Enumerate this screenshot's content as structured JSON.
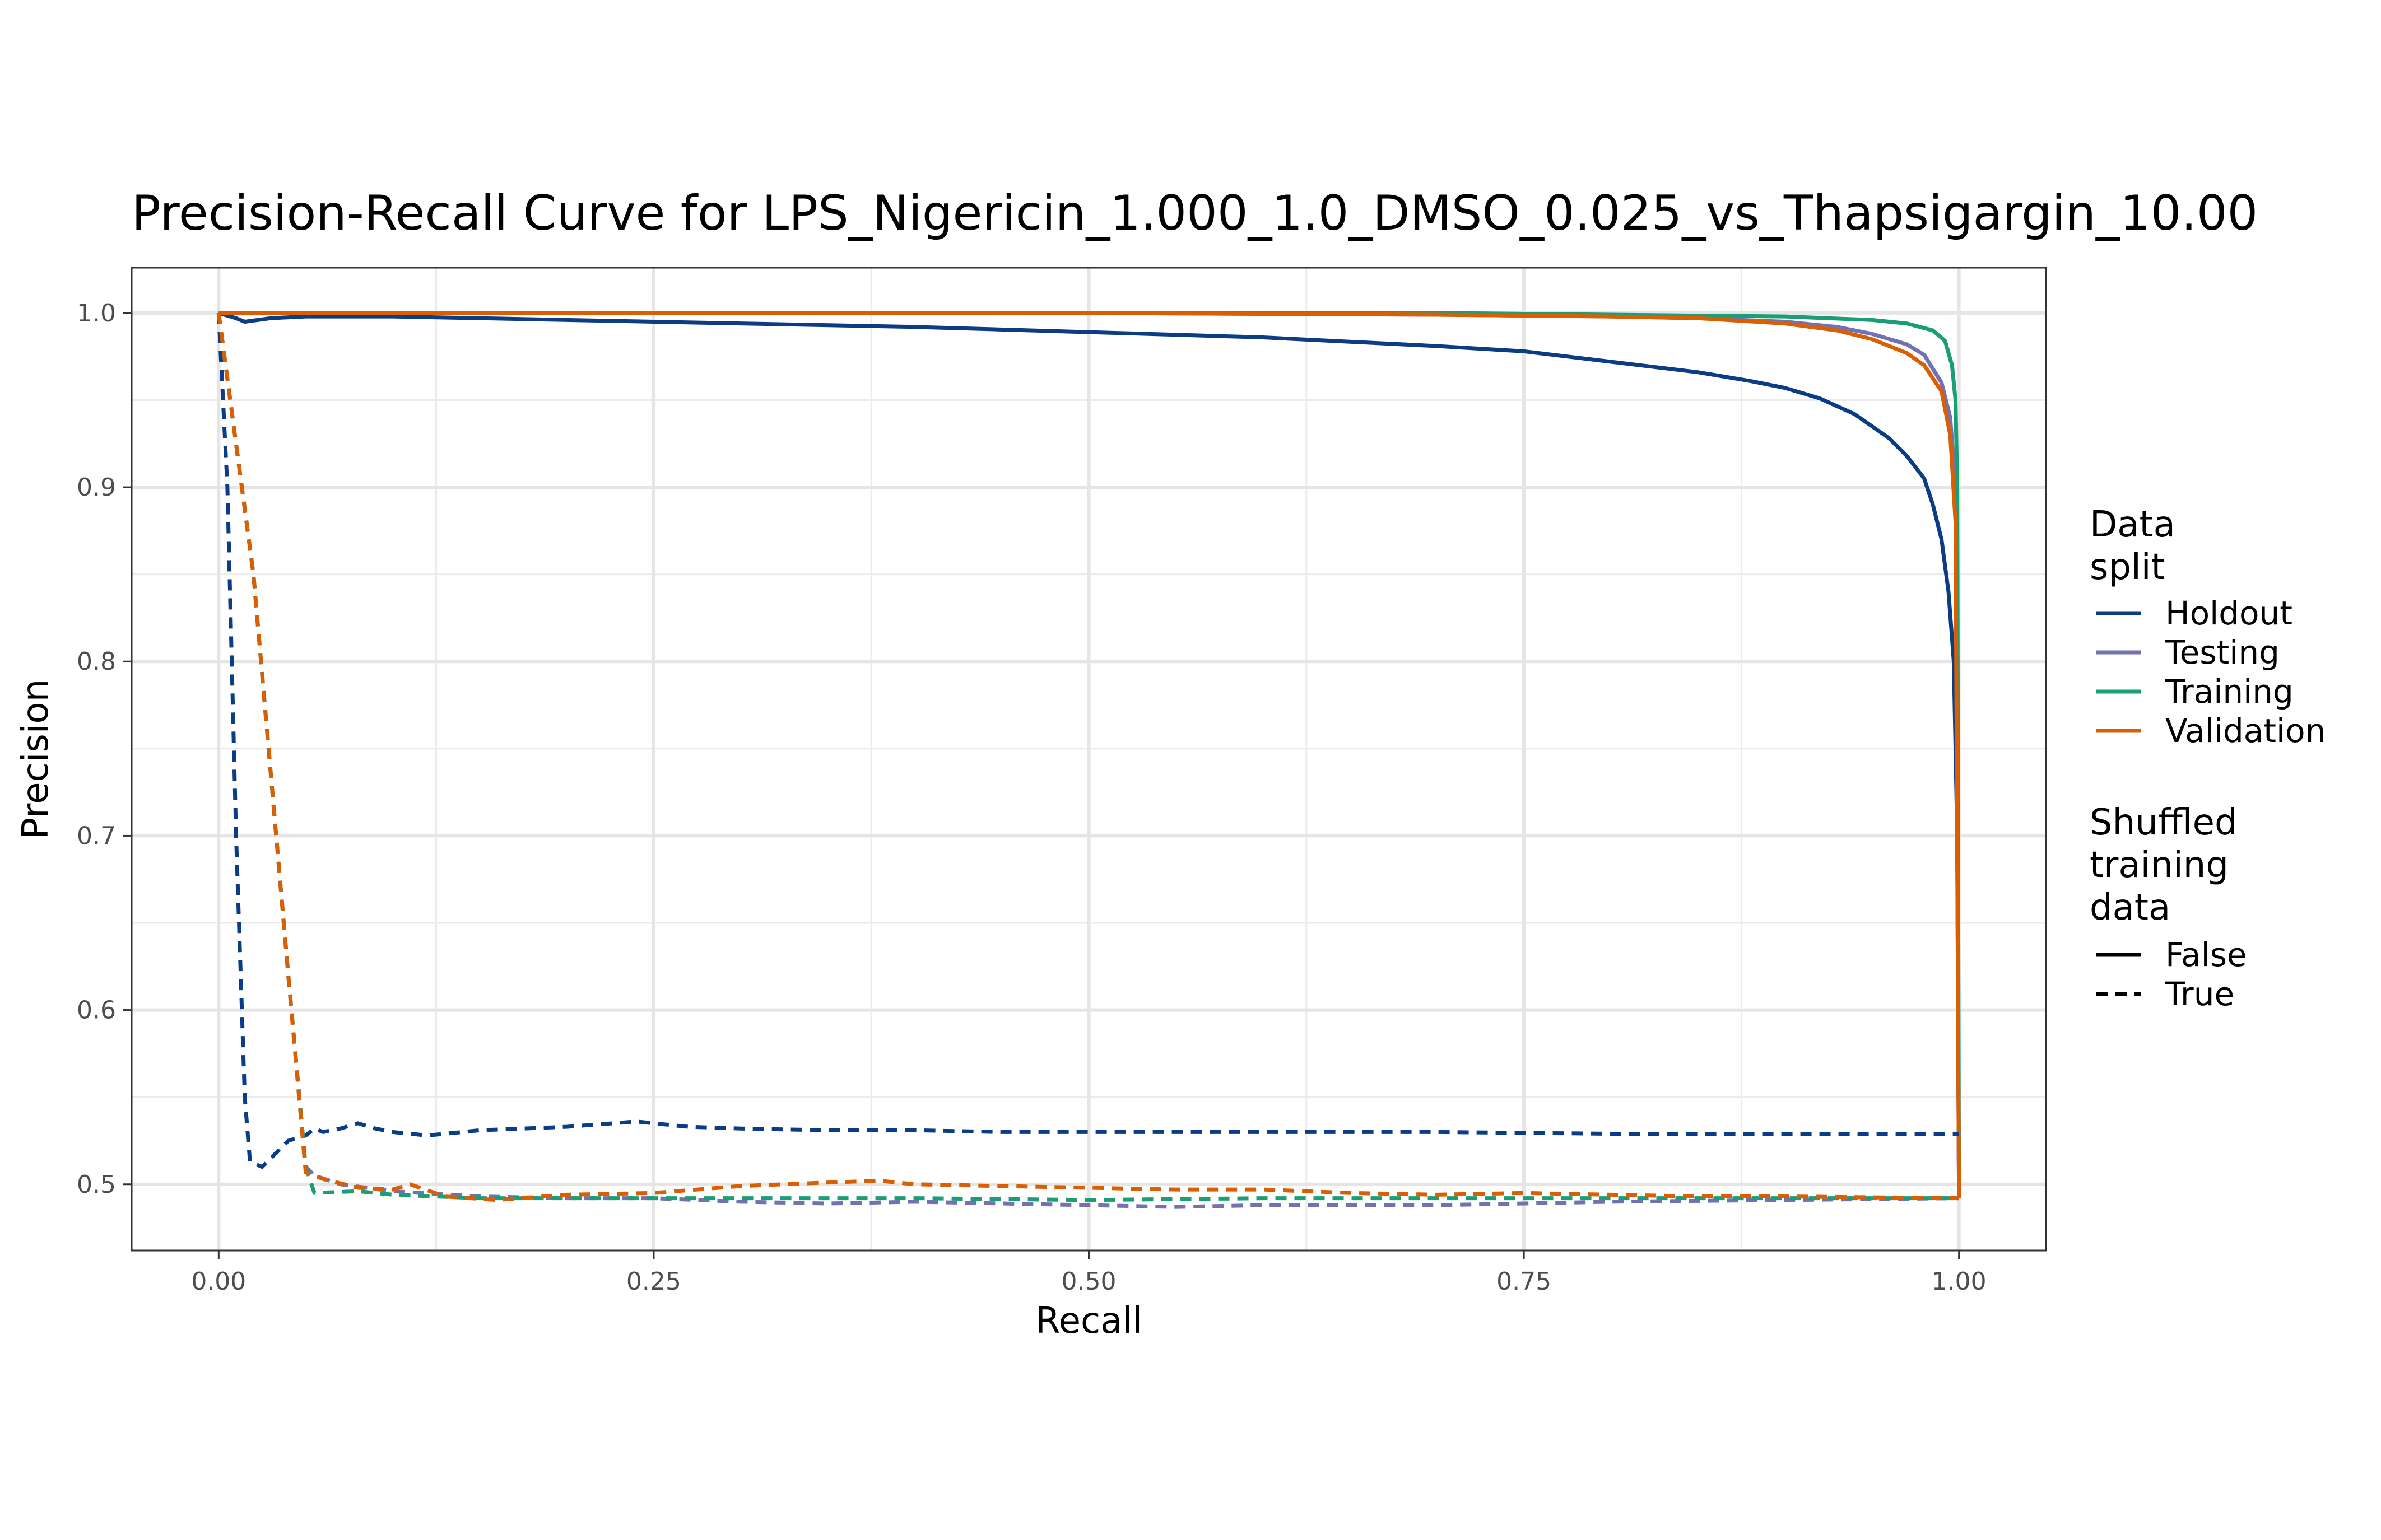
{
  "chart_data": {
    "type": "line",
    "title": "Precision-Recall Curve for LPS_Nigericin_1.000_1.0_DMSO_0.025_vs_Thapsigargin_10.00",
    "xlabel": "Recall",
    "ylabel": "Precision",
    "xlim": [
      -0.05,
      1.05
    ],
    "ylim": [
      0.462,
      1.026
    ],
    "x_ticks": [
      "0.00",
      "0.25",
      "0.50",
      "0.75",
      "1.00"
    ],
    "x_tick_values": [
      0,
      0.25,
      0.5,
      0.75,
      1.0
    ],
    "y_ticks": [
      "0.5",
      "0.6",
      "0.7",
      "0.8",
      "0.9",
      "1.0"
    ],
    "y_tick_values": [
      0.5,
      0.6,
      0.7,
      0.8,
      0.9,
      1.0
    ],
    "grid": true,
    "legend_position": "right",
    "legend": {
      "color_title": "Data\nsplit",
      "color_entries": [
        {
          "label": "Holdout",
          "color": "#0b3d86"
        },
        {
          "label": "Testing",
          "color": "#7570b3"
        },
        {
          "label": "Training",
          "color": "#1b9e77"
        },
        {
          "label": "Validation",
          "color": "#d95f02"
        }
      ],
      "linetype_title": "Shuffled\ntraining\ndata",
      "linetype_entries": [
        {
          "label": "False",
          "dash": "solid"
        },
        {
          "label": "True",
          "dash": "dashed"
        }
      ]
    },
    "series": [
      {
        "split": "Holdout",
        "shuffled": "False",
        "color": "#0b3d86",
        "dash": "solid",
        "points": [
          [
            0,
            1.0
          ],
          [
            0.01,
            0.997
          ],
          [
            0.015,
            0.995
          ],
          [
            0.03,
            0.997
          ],
          [
            0.05,
            0.998
          ],
          [
            0.1,
            0.998
          ],
          [
            0.2,
            0.996
          ],
          [
            0.3,
            0.994
          ],
          [
            0.4,
            0.992
          ],
          [
            0.5,
            0.989
          ],
          [
            0.6,
            0.986
          ],
          [
            0.7,
            0.981
          ],
          [
            0.75,
            0.978
          ],
          [
            0.8,
            0.972
          ],
          [
            0.85,
            0.966
          ],
          [
            0.88,
            0.961
          ],
          [
            0.9,
            0.957
          ],
          [
            0.92,
            0.951
          ],
          [
            0.94,
            0.942
          ],
          [
            0.96,
            0.928
          ],
          [
            0.97,
            0.918
          ],
          [
            0.98,
            0.905
          ],
          [
            0.985,
            0.89
          ],
          [
            0.99,
            0.87
          ],
          [
            0.994,
            0.84
          ],
          [
            0.997,
            0.8
          ],
          [
            0.999,
            0.7
          ],
          [
            1.0,
            0.492
          ]
        ]
      },
      {
        "split": "Testing",
        "shuffled": "False",
        "color": "#7570b3",
        "dash": "solid",
        "points": [
          [
            0,
            1.0
          ],
          [
            0.3,
            1.0
          ],
          [
            0.5,
            1.0
          ],
          [
            0.7,
            0.999
          ],
          [
            0.8,
            0.998
          ],
          [
            0.85,
            0.997
          ],
          [
            0.9,
            0.995
          ],
          [
            0.93,
            0.992
          ],
          [
            0.95,
            0.988
          ],
          [
            0.97,
            0.982
          ],
          [
            0.98,
            0.976
          ],
          [
            0.99,
            0.96
          ],
          [
            0.995,
            0.94
          ],
          [
            0.998,
            0.9
          ],
          [
            1.0,
            0.492
          ]
        ]
      },
      {
        "split": "Training",
        "shuffled": "False",
        "color": "#1b9e77",
        "dash": "solid",
        "points": [
          [
            0,
            1.0
          ],
          [
            0.3,
            1.0
          ],
          [
            0.5,
            1.0
          ],
          [
            0.7,
            1.0
          ],
          [
            0.8,
            0.999
          ],
          [
            0.9,
            0.998
          ],
          [
            0.95,
            0.996
          ],
          [
            0.97,
            0.994
          ],
          [
            0.985,
            0.99
          ],
          [
            0.992,
            0.984
          ],
          [
            0.996,
            0.97
          ],
          [
            0.998,
            0.95
          ],
          [
            0.999,
            0.9
          ],
          [
            1.0,
            0.492
          ]
        ]
      },
      {
        "split": "Validation",
        "shuffled": "False",
        "color": "#d95f02",
        "dash": "solid",
        "points": [
          [
            0,
            1.0
          ],
          [
            0.3,
            1.0
          ],
          [
            0.5,
            1.0
          ],
          [
            0.7,
            0.999
          ],
          [
            0.8,
            0.998
          ],
          [
            0.85,
            0.997
          ],
          [
            0.9,
            0.994
          ],
          [
            0.93,
            0.99
          ],
          [
            0.95,
            0.985
          ],
          [
            0.97,
            0.977
          ],
          [
            0.98,
            0.97
          ],
          [
            0.99,
            0.955
          ],
          [
            0.995,
            0.93
          ],
          [
            0.998,
            0.88
          ],
          [
            1.0,
            0.492
          ]
        ]
      },
      {
        "split": "Holdout",
        "shuffled": "True",
        "color": "#0b3d86",
        "dash": "dashed",
        "points": [
          [
            0,
            1.0
          ],
          [
            0.005,
            0.9
          ],
          [
            0.01,
            0.7
          ],
          [
            0.015,
            0.55
          ],
          [
            0.018,
            0.513
          ],
          [
            0.02,
            0.512
          ],
          [
            0.025,
            0.51
          ],
          [
            0.03,
            0.515
          ],
          [
            0.04,
            0.525
          ],
          [
            0.05,
            0.528
          ],
          [
            0.055,
            0.532
          ],
          [
            0.06,
            0.53
          ],
          [
            0.07,
            0.532
          ],
          [
            0.08,
            0.535
          ],
          [
            0.09,
            0.532
          ],
          [
            0.1,
            0.53
          ],
          [
            0.12,
            0.528
          ],
          [
            0.15,
            0.531
          ],
          [
            0.2,
            0.533
          ],
          [
            0.24,
            0.536
          ],
          [
            0.27,
            0.533
          ],
          [
            0.3,
            0.532
          ],
          [
            0.35,
            0.531
          ],
          [
            0.4,
            0.531
          ],
          [
            0.45,
            0.53
          ],
          [
            0.5,
            0.53
          ],
          [
            0.6,
            0.53
          ],
          [
            0.7,
            0.53
          ],
          [
            0.8,
            0.529
          ],
          [
            0.9,
            0.529
          ],
          [
            1.0,
            0.529
          ]
        ]
      },
      {
        "split": "Testing",
        "shuffled": "True",
        "color": "#7570b3",
        "dash": "dashed",
        "points": [
          [
            0,
            1.0
          ],
          [
            0.02,
            0.85
          ],
          [
            0.04,
            0.62
          ],
          [
            0.05,
            0.51
          ],
          [
            0.055,
            0.505
          ],
          [
            0.07,
            0.5
          ],
          [
            0.1,
            0.496
          ],
          [
            0.15,
            0.493
          ],
          [
            0.2,
            0.492
          ],
          [
            0.25,
            0.492
          ],
          [
            0.3,
            0.49
          ],
          [
            0.35,
            0.489
          ],
          [
            0.4,
            0.49
          ],
          [
            0.5,
            0.488
          ],
          [
            0.55,
            0.487
          ],
          [
            0.6,
            0.488
          ],
          [
            0.7,
            0.488
          ],
          [
            0.8,
            0.49
          ],
          [
            0.9,
            0.491
          ],
          [
            1.0,
            0.492
          ]
        ]
      },
      {
        "split": "Training",
        "shuffled": "True",
        "color": "#1b9e77",
        "dash": "dashed",
        "points": [
          [
            0,
            1.0
          ],
          [
            0.02,
            0.85
          ],
          [
            0.04,
            0.62
          ],
          [
            0.05,
            0.51
          ],
          [
            0.055,
            0.495
          ],
          [
            0.08,
            0.496
          ],
          [
            0.1,
            0.494
          ],
          [
            0.15,
            0.492
          ],
          [
            0.2,
            0.492
          ],
          [
            0.3,
            0.492
          ],
          [
            0.4,
            0.492
          ],
          [
            0.5,
            0.491
          ],
          [
            0.6,
            0.492
          ],
          [
            0.7,
            0.492
          ],
          [
            0.8,
            0.492
          ],
          [
            0.9,
            0.492
          ],
          [
            1.0,
            0.492
          ]
        ]
      },
      {
        "split": "Validation",
        "shuffled": "True",
        "color": "#d95f02",
        "dash": "dashed",
        "points": [
          [
            0,
            1.0
          ],
          [
            0.02,
            0.85
          ],
          [
            0.04,
            0.62
          ],
          [
            0.05,
            0.507
          ],
          [
            0.06,
            0.503
          ],
          [
            0.08,
            0.498
          ],
          [
            0.1,
            0.497
          ],
          [
            0.11,
            0.5
          ],
          [
            0.13,
            0.493
          ],
          [
            0.16,
            0.491
          ],
          [
            0.2,
            0.494
          ],
          [
            0.25,
            0.495
          ],
          [
            0.3,
            0.499
          ],
          [
            0.35,
            0.501
          ],
          [
            0.38,
            0.502
          ],
          [
            0.4,
            0.5
          ],
          [
            0.45,
            0.499
          ],
          [
            0.5,
            0.498
          ],
          [
            0.55,
            0.497
          ],
          [
            0.6,
            0.497
          ],
          [
            0.65,
            0.495
          ],
          [
            0.7,
            0.494
          ],
          [
            0.75,
            0.495
          ],
          [
            0.8,
            0.494
          ],
          [
            0.85,
            0.493
          ],
          [
            0.9,
            0.493
          ],
          [
            1.0,
            0.492
          ]
        ]
      }
    ]
  }
}
